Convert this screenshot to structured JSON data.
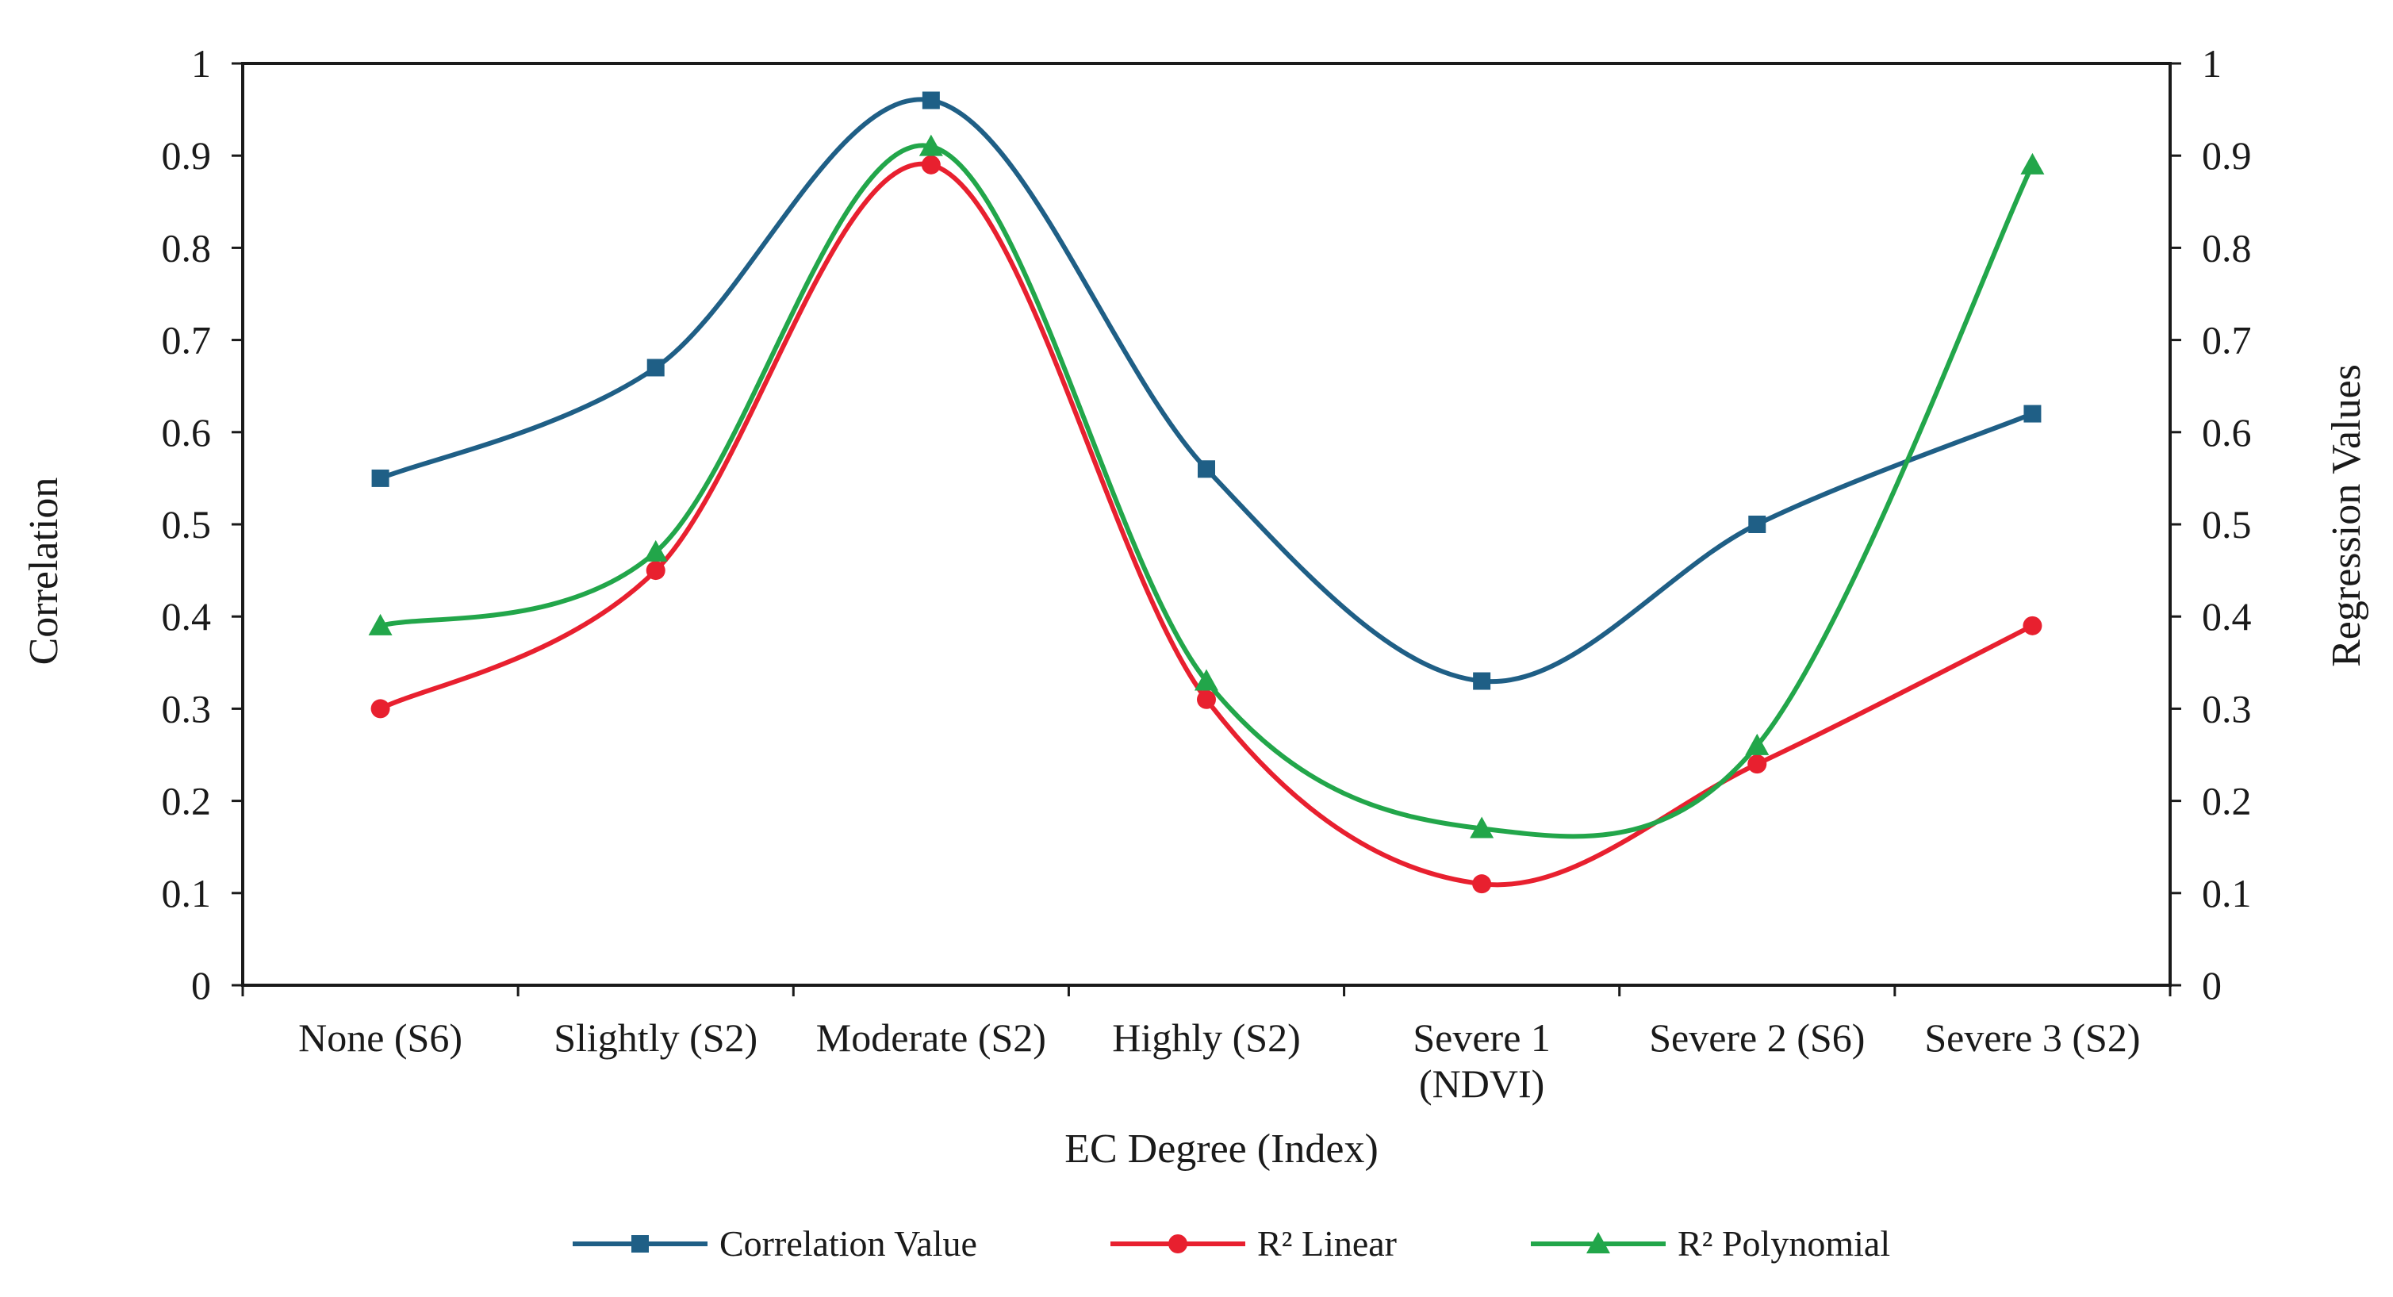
{
  "chart_data": {
    "type": "line",
    "smooth": true,
    "title": "",
    "xlabel": "EC Degree (Index)",
    "ylabel": "Correlation",
    "y2label": "Regression Values",
    "ylim": [
      0,
      1
    ],
    "y2lim": [
      0,
      1
    ],
    "yticks": [
      "0",
      "0.1",
      "0.2",
      "0.3",
      "0.4",
      "0.5",
      "0.6",
      "0.7",
      "0.8",
      "0.9",
      "1"
    ],
    "y2ticks": [
      "0",
      "0.1",
      "0.2",
      "0.3",
      "0.4",
      "0.5",
      "0.6",
      "0.7",
      "0.8",
      "0.9",
      "1"
    ],
    "categories": [
      [
        "None (S6)"
      ],
      [
        "Slightly (S2)"
      ],
      [
        "Moderate (S2)"
      ],
      [
        "Highly (S2)"
      ],
      [
        "Severe 1",
        "(NDVI)"
      ],
      [
        "Severe 2 (S6)"
      ],
      [
        "Severe 3 (S2)"
      ]
    ],
    "series": [
      {
        "name": "Correlation Value",
        "color": "#1f5f86",
        "marker": "square",
        "values": [
          0.55,
          0.67,
          0.96,
          0.56,
          0.33,
          0.5,
          0.62
        ]
      },
      {
        "name": "R² Linear",
        "color": "#e8202f",
        "marker": "circle",
        "values": [
          0.3,
          0.45,
          0.89,
          0.31,
          0.11,
          0.24,
          0.39
        ]
      },
      {
        "name": "R² Polynomial",
        "color": "#22a64a",
        "marker": "triangle",
        "values": [
          0.39,
          0.47,
          0.91,
          0.33,
          0.17,
          0.26,
          0.89
        ]
      }
    ],
    "legend": "bottom-center",
    "grid": false
  }
}
